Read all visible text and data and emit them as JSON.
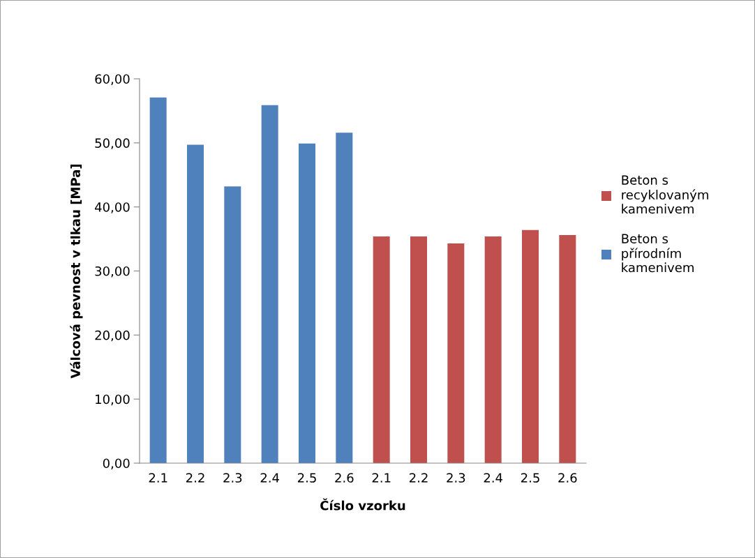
{
  "chart_data": {
    "type": "bar",
    "xlabel": "Číslo vzorku",
    "ylabel": "Válcová pevnost v tlkau [MPa]",
    "categories": [
      "2.1",
      "2.2",
      "2.3",
      "2.4",
      "2.5",
      "2.6",
      "2.1",
      "2.2",
      "2.3",
      "2.4",
      "2.5",
      "2.6"
    ],
    "series": [
      {
        "name": "Beton s recyklovaným kamenivem",
        "color": "#c0504d",
        "values": [
          null,
          null,
          null,
          null,
          null,
          null,
          35.4,
          35.4,
          34.3,
          35.4,
          36.4,
          35.6
        ]
      },
      {
        "name": "Beton s přírodním kamenivem",
        "color": "#4f81bd",
        "values": [
          57.1,
          49.7,
          43.2,
          55.9,
          49.9,
          51.6,
          null,
          null,
          null,
          null,
          null,
          null
        ]
      }
    ],
    "ylim": [
      0,
      60
    ],
    "yticks": [
      {
        "value": 0,
        "label": "0,00"
      },
      {
        "value": 10,
        "label": "10,00"
      },
      {
        "value": 20,
        "label": "20,00"
      },
      {
        "value": 30,
        "label": "30,00"
      },
      {
        "value": 40,
        "label": "40,00"
      },
      {
        "value": 50,
        "label": "50,00"
      },
      {
        "value": 60,
        "label": "60,00"
      }
    ],
    "grid": false,
    "legend": "right"
  }
}
